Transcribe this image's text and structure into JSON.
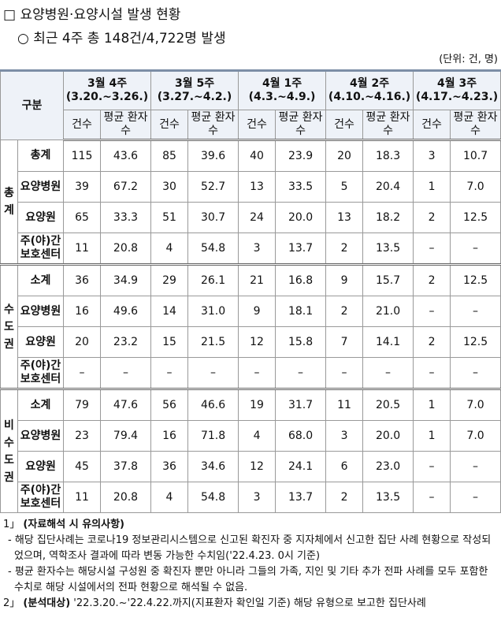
{
  "title": "□ 요양병원·요양시설 발생 현황",
  "subtitle": "○ 최근 4주 총 148건/4,722명 발생",
  "unit": "(단위: 건, 명)",
  "table": {
    "header": {
      "label": "구분",
      "count": "건수",
      "avg": "평균 환자수",
      "weeks": [
        {
          "name": "3월 4주",
          "period": "(3.20.~3.26.)"
        },
        {
          "name": "3월 5주",
          "period": "(3.27.~4.2.)"
        },
        {
          "name": "4월 1주",
          "period": "(4.3.~4.9.)"
        },
        {
          "name": "4월 2주",
          "period": "(4.10.~4.16.)"
        },
        {
          "name": "4월 3주",
          "period": "(4.17.~4.23.)"
        }
      ]
    },
    "groups": [
      {
        "name": "총계",
        "rows": [
          {
            "label": "총계",
            "values": [
              "115",
              "43.6",
              "85",
              "39.6",
              "40",
              "23.9",
              "20",
              "18.3",
              "3",
              "10.7"
            ]
          },
          {
            "label": "요양병원",
            "values": [
              "39",
              "67.2",
              "30",
              "52.7",
              "13",
              "33.5",
              "5",
              "20.4",
              "1",
              "7.0"
            ]
          },
          {
            "label": "요양원",
            "values": [
              "65",
              "33.3",
              "51",
              "30.7",
              "24",
              "20.0",
              "13",
              "18.2",
              "2",
              "12.5"
            ]
          },
          {
            "label": "주(야)간보호센터",
            "values": [
              "11",
              "20.8",
              "4",
              "54.8",
              "3",
              "13.7",
              "2",
              "13.5",
              "–",
              "–"
            ]
          }
        ]
      },
      {
        "name": "수도권",
        "rows": [
          {
            "label": "소계",
            "values": [
              "36",
              "34.9",
              "29",
              "26.1",
              "21",
              "16.8",
              "9",
              "15.7",
              "2",
              "12.5"
            ]
          },
          {
            "label": "요양병원",
            "values": [
              "16",
              "49.6",
              "14",
              "31.0",
              "9",
              "18.1",
              "2",
              "21.0",
              "–",
              "–"
            ]
          },
          {
            "label": "요양원",
            "values": [
              "20",
              "23.2",
              "15",
              "21.5",
              "12",
              "15.8",
              "7",
              "14.1",
              "2",
              "12.5"
            ]
          },
          {
            "label": "주(야)간보호센터",
            "values": [
              "–",
              "–",
              "–",
              "–",
              "–",
              "–",
              "–",
              "–",
              "–",
              "–"
            ]
          }
        ]
      },
      {
        "name": "비수도권",
        "rows": [
          {
            "label": "소계",
            "values": [
              "79",
              "47.6",
              "56",
              "46.6",
              "19",
              "31.7",
              "11",
              "20.5",
              "1",
              "7.0"
            ]
          },
          {
            "label": "요양병원",
            "values": [
              "23",
              "79.4",
              "16",
              "71.8",
              "4",
              "68.0",
              "3",
              "20.0",
              "1",
              "7.0"
            ]
          },
          {
            "label": "요양원",
            "values": [
              "45",
              "37.8",
              "36",
              "34.6",
              "12",
              "24.1",
              "6",
              "23.0",
              "–",
              "–"
            ]
          },
          {
            "label": "주(야)간보호센터",
            "values": [
              "11",
              "20.8",
              "4",
              "54.8",
              "3",
              "13.7",
              "2",
              "13.5",
              "–",
              "–"
            ]
          }
        ]
      }
    ]
  },
  "notes": [
    {
      "marker": "1」",
      "title": "(자료해석 시 유의사항)",
      "items": [
        "- 해당 집단사례는 코로나19 정보관리시스템으로 신고된 확진자 중 지자체에서 신고한 집단 사례 현황으로 작성되었으며, 역학조사 결과에 따라 변동 가능한 수치임('22.4.23. 0시 기준)",
        "- 평균 환자수는 해당시설 구성원 중 확진자 뿐만 아니라 그들의 가족, 지인 및 기타 추가 전파 사례를 모두 포함한 수치로 해당 시설에서의 전파 현황으로 해석될 수 없음."
      ]
    },
    {
      "marker": "2」",
      "title": "(분석대상)",
      "items": [
        "'22.3.20.~'22.4.22.까지(지표환자 확인일 기준) 해당 유형으로 보고한 집단사례"
      ]
    }
  ]
}
